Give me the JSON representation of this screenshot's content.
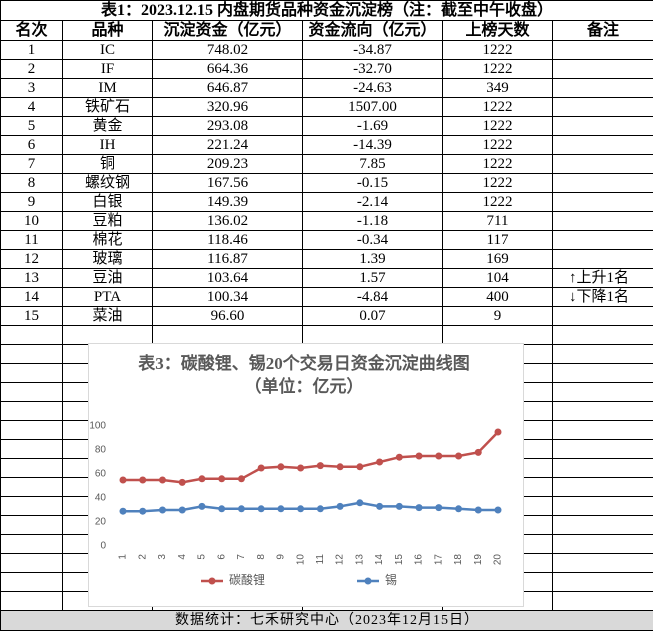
{
  "table": {
    "title": "表1：2023.12.15 内盘期货品种资金沉淀榜（注：截至中午收盘）",
    "header": [
      "名次",
      "品种",
      "沉淀资金（亿元）",
      "资金流向（亿元）",
      "上榜天数",
      "备注"
    ],
    "rows": [
      [
        "1",
        "IC",
        "748.02",
        "-34.87",
        "1222",
        ""
      ],
      [
        "2",
        "IF",
        "664.36",
        "-32.70",
        "1222",
        ""
      ],
      [
        "3",
        "IM",
        "646.87",
        "-24.63",
        "349",
        ""
      ],
      [
        "4",
        "铁矿石",
        "320.96",
        "1507.00",
        "1222",
        ""
      ],
      [
        "5",
        "黄金",
        "293.08",
        "-1.69",
        "1222",
        ""
      ],
      [
        "6",
        "IH",
        "221.24",
        "-14.39",
        "1222",
        ""
      ],
      [
        "7",
        "铜",
        "209.23",
        "7.85",
        "1222",
        ""
      ],
      [
        "8",
        "螺纹钢",
        "167.56",
        "-0.15",
        "1222",
        ""
      ],
      [
        "9",
        "白银",
        "149.39",
        "-2.14",
        "1222",
        ""
      ],
      [
        "10",
        "豆粕",
        "136.02",
        "-1.18",
        "711",
        ""
      ],
      [
        "11",
        "棉花",
        "118.46",
        "-0.34",
        "117",
        ""
      ],
      [
        "12",
        "玻璃",
        "116.87",
        "1.39",
        "169",
        ""
      ],
      [
        "13",
        "豆油",
        "103.64",
        "1.57",
        "104",
        "↑上升1名"
      ],
      [
        "14",
        "PTA",
        "100.34",
        "-4.84",
        "400",
        "↓下降1名"
      ],
      [
        "15",
        "菜油",
        "96.60",
        "0.07",
        "9",
        ""
      ]
    ]
  },
  "chart_data": {
    "type": "line",
    "title": "表3：碳酸锂、锡20个交易日资金沉淀曲线图（单位：亿元）",
    "categories": [
      "1",
      "2",
      "3",
      "4",
      "5",
      "6",
      "7",
      "8",
      "9",
      "10",
      "11",
      "12",
      "13",
      "14",
      "15",
      "16",
      "17",
      "18",
      "19",
      "20"
    ],
    "series": [
      {
        "name": "碳酸锂",
        "color": "#c0504d",
        "values": [
          55,
          55,
          55,
          53,
          56,
          56,
          56,
          65,
          66,
          65,
          67,
          66,
          66,
          70,
          74,
          75,
          75,
          75,
          78,
          95
        ]
      },
      {
        "name": "锡",
        "color": "#4f81bd",
        "values": [
          29,
          29,
          30,
          30,
          33,
          31,
          31,
          31,
          31,
          31,
          31,
          33,
          36,
          33,
          33,
          32,
          32,
          31,
          30,
          30
        ]
      }
    ],
    "ylim": [
      0,
      100
    ],
    "yticks": [
      0,
      20,
      40,
      60,
      80,
      100
    ],
    "legend": "bottom"
  },
  "footer": "数据统计：七禾研究中心（2023年12月15日）"
}
